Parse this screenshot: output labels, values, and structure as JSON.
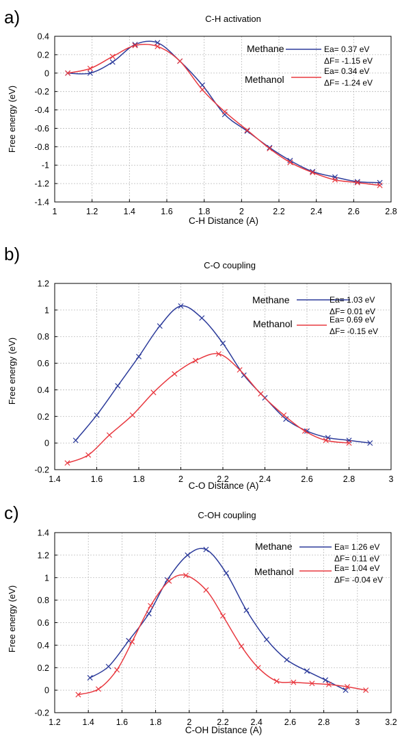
{
  "colors": {
    "methane": "#2b3a9a",
    "methanol": "#e8383f",
    "grid": "#b9b9b9",
    "axis": "#000000"
  },
  "chart_data": [
    {
      "type": "line",
      "panel_label": "a)",
      "title": "C-H activation",
      "xlabel": "C-H Distance (A)",
      "ylabel": "Free energy (eV)",
      "xlim": [
        1,
        2.8
      ],
      "ylim": [
        -1.4,
        0.4
      ],
      "xticks": [
        "1",
        "1.2",
        "1.4",
        "1.6",
        "1.8",
        "2",
        "2.2",
        "2.4",
        "2.6",
        "2.8"
      ],
      "yticks": [
        "-1.4",
        "-1.2",
        "-1",
        "-0.8",
        "-0.6",
        "-0.4",
        "-0.2",
        "0",
        "0.2",
        "0.4"
      ],
      "grid": true,
      "legend_position": "top-right",
      "series": [
        {
          "name": "Methane",
          "ea": "Ea= 0.37 eV",
          "df": "ΔF= -1.15 eV",
          "color_key": "methane",
          "x": [
            1.07,
            1.19,
            1.31,
            1.43,
            1.55,
            1.67,
            1.79,
            1.91,
            2.03,
            2.15,
            2.26,
            2.38,
            2.5,
            2.62,
            2.74
          ],
          "y": [
            0.0,
            0.0,
            0.12,
            0.31,
            0.33,
            0.13,
            -0.13,
            -0.45,
            -0.63,
            -0.81,
            -0.95,
            -1.07,
            -1.13,
            -1.18,
            -1.19
          ]
        },
        {
          "name": "Methanol",
          "ea": "Ea= 0.34 eV",
          "df": "ΔF= -1.24 eV",
          "color_key": "methanol",
          "x": [
            1.07,
            1.19,
            1.31,
            1.43,
            1.55,
            1.67,
            1.79,
            1.91,
            2.03,
            2.15,
            2.26,
            2.38,
            2.5,
            2.62,
            2.74
          ],
          "y": [
            0.0,
            0.05,
            0.18,
            0.3,
            0.29,
            0.13,
            -0.18,
            -0.42,
            -0.62,
            -0.82,
            -0.97,
            -1.08,
            -1.16,
            -1.19,
            -1.22
          ]
        }
      ]
    },
    {
      "type": "line",
      "panel_label": "b)",
      "title": "C-O coupling",
      "xlabel": "C-O Distance (A)",
      "ylabel": "Free energy (eV)",
      "xlim": [
        1.4,
        3
      ],
      "ylim": [
        -0.2,
        1.2
      ],
      "xticks": [
        "1.4",
        "1.6",
        "1.8",
        "2",
        "2.2",
        "2.4",
        "2.6",
        "2.8",
        "3"
      ],
      "yticks": [
        "-0.2",
        "0",
        "0.2",
        "0.4",
        "0.6",
        "0.8",
        "1",
        "1.2"
      ],
      "grid": true,
      "legend_position": "top-right",
      "series": [
        {
          "name": "Methane",
          "ea": "Ea= 1.03 eV",
          "df": "ΔF= 0.01 eV",
          "color_key": "methane",
          "x": [
            1.5,
            1.6,
            1.7,
            1.8,
            1.9,
            2.0,
            2.1,
            2.2,
            2.3,
            2.4,
            2.5,
            2.6,
            2.7,
            2.8,
            2.9
          ],
          "y": [
            0.02,
            0.21,
            0.43,
            0.65,
            0.88,
            1.03,
            0.94,
            0.75,
            0.51,
            0.34,
            0.18,
            0.09,
            0.04,
            0.02,
            0.0
          ]
        },
        {
          "name": "Methanol",
          "ea": "Ea= 0.69 eV",
          "df": "ΔF= -0.15 eV",
          "color_key": "methanol",
          "x": [
            1.46,
            1.56,
            1.66,
            1.77,
            1.87,
            1.97,
            2.07,
            2.18,
            2.28,
            2.38,
            2.49,
            2.59,
            2.69,
            2.8
          ],
          "y": [
            -0.15,
            -0.09,
            0.06,
            0.21,
            0.38,
            0.52,
            0.62,
            0.67,
            0.55,
            0.37,
            0.21,
            0.09,
            0.02,
            0.0
          ]
        }
      ]
    },
    {
      "type": "line",
      "panel_label": "c)",
      "title": "C-OH coupling",
      "xlabel": "C-OH Distance (A)",
      "ylabel": "Free energy (eV)",
      "xlim": [
        1.2,
        3.2
      ],
      "ylim": [
        -0.2,
        1.4
      ],
      "xticks": [
        "1.2",
        "1.4",
        "1.6",
        "1.8",
        "2",
        "2.2",
        "2.4",
        "2.6",
        "2.8",
        "3",
        "3.2"
      ],
      "yticks": [
        "-0.2",
        "0",
        "0.2",
        "0.4",
        "0.6",
        "0.8",
        "1",
        "1.2",
        "1.4"
      ],
      "grid": true,
      "legend_position": "top-right",
      "series": [
        {
          "name": "Methane",
          "ea": "Ea= 1.26 eV",
          "df": "ΔF= 0.11 eV",
          "color_key": "methane",
          "x": [
            1.41,
            1.52,
            1.64,
            1.76,
            1.87,
            1.99,
            2.1,
            2.22,
            2.34,
            2.46,
            2.58,
            2.7,
            2.81,
            2.93
          ],
          "y": [
            0.11,
            0.21,
            0.44,
            0.68,
            0.98,
            1.2,
            1.25,
            1.04,
            0.71,
            0.45,
            0.27,
            0.17,
            0.09,
            0.0
          ]
        },
        {
          "name": "Methanol",
          "ea": "Ea= 1.04 eV",
          "df": "ΔF= -0.04 eV",
          "color_key": "methanol",
          "x": [
            1.34,
            1.46,
            1.57,
            1.66,
            1.77,
            1.88,
            1.98,
            2.1,
            2.2,
            2.31,
            2.41,
            2.52,
            2.62,
            2.73,
            2.83,
            2.94,
            3.05
          ],
          "y": [
            -0.04,
            0.01,
            0.18,
            0.43,
            0.75,
            0.97,
            1.02,
            0.89,
            0.66,
            0.39,
            0.2,
            0.08,
            0.07,
            0.06,
            0.05,
            0.03,
            0.0
          ]
        }
      ]
    }
  ]
}
